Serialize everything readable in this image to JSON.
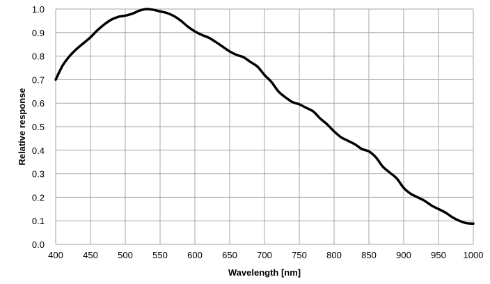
{
  "chart_data": {
    "type": "line",
    "title": "",
    "xlabel": "Wavelength [nm]",
    "ylabel": "Relative response",
    "xlim": [
      400,
      1000
    ],
    "ylim": [
      0,
      1.0
    ],
    "grid": true,
    "xticks": [
      "400",
      "450",
      "500",
      "550",
      "600",
      "650",
      "700",
      "750",
      "800",
      "850",
      "900",
      "950",
      "1000"
    ],
    "yticks": [
      "0.0",
      "0.1",
      "0.2",
      "0.3",
      "0.4",
      "0.5",
      "0.6",
      "0.7",
      "0.8",
      "0.9",
      "1.0"
    ],
    "line_color": "#000000",
    "grid_color": "#a6a6a6",
    "series": [
      {
        "x": [
          400,
          410,
          420,
          430,
          440,
          450,
          460,
          470,
          480,
          490,
          500,
          510,
          520,
          530,
          540,
          550,
          560,
          570,
          580,
          590,
          600,
          610,
          620,
          630,
          640,
          650,
          660,
          670,
          680,
          690,
          700,
          710,
          720,
          730,
          740,
          750,
          760,
          770,
          780,
          790,
          800,
          810,
          820,
          830,
          840,
          850,
          860,
          870,
          880,
          890,
          900,
          910,
          920,
          930,
          940,
          950,
          960,
          970,
          980,
          990,
          1000
        ],
        "y": [
          0.7,
          0.76,
          0.8,
          0.83,
          0.855,
          0.88,
          0.91,
          0.935,
          0.955,
          0.967,
          0.972,
          0.98,
          0.993,
          1.0,
          0.997,
          0.99,
          0.983,
          0.97,
          0.95,
          0.925,
          0.905,
          0.89,
          0.878,
          0.86,
          0.84,
          0.82,
          0.805,
          0.795,
          0.775,
          0.755,
          0.72,
          0.69,
          0.65,
          0.625,
          0.605,
          0.595,
          0.58,
          0.565,
          0.535,
          0.51,
          0.48,
          0.455,
          0.44,
          0.425,
          0.405,
          0.395,
          0.37,
          0.33,
          0.305,
          0.28,
          0.24,
          0.215,
          0.2,
          0.185,
          0.165,
          0.15,
          0.135,
          0.115,
          0.1,
          0.09,
          0.088
        ]
      }
    ]
  }
}
